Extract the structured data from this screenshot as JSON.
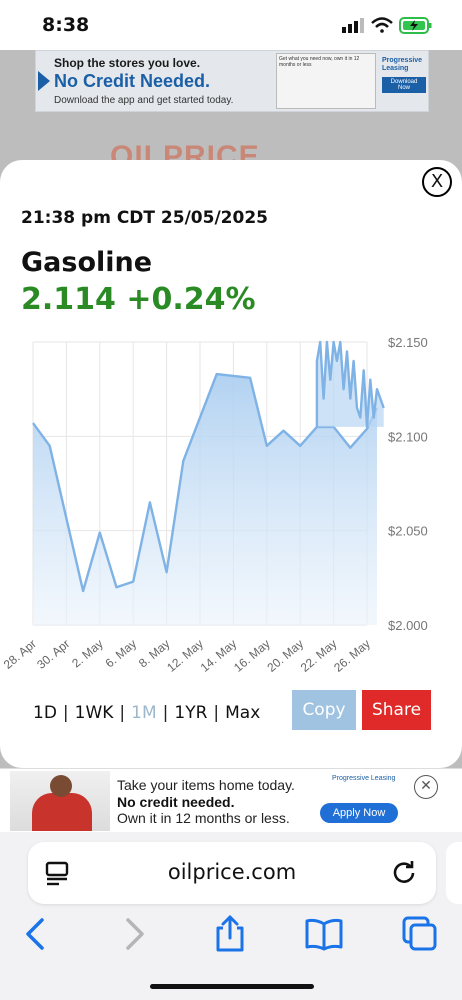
{
  "status_bar": {
    "time": "8:38"
  },
  "ad_top": {
    "line1": "Shop the stores you love.",
    "line2": "No Credit Needed.",
    "line3": "Download the app and get started today.",
    "phone_text": "Get what you need now, own it in 12 months or less",
    "brand": "Progressive Leasing",
    "brand_button": "Download Now"
  },
  "background_logo": "OILPRICE",
  "modal": {
    "timestamp": "21:38 pm CDT 25/05/2025",
    "commodity": "Gasoline",
    "price": "2.114 +0.24%",
    "range": {
      "d1": "1D",
      "wk1": "1WK",
      "m1": "1M",
      "yr1": "1YR",
      "max": "Max",
      "separator": "|"
    },
    "copy_label": "Copy",
    "share_label": "Share",
    "close_label": "X"
  },
  "chart_data": {
    "type": "area",
    "x_ticks": [
      "28. Apr",
      "30. Apr",
      "2. May",
      "6. May",
      "8. May",
      "12. May",
      "14. May",
      "16. May",
      "20. May",
      "22. May",
      "26. May"
    ],
    "y_ticks": [
      "$2.000",
      "$2.050",
      "$2.100",
      "$2.150"
    ],
    "ylim": [
      2.0,
      2.15
    ],
    "series": [
      {
        "points": [
          [
            0,
            2.107
          ],
          [
            0.5,
            2.095
          ],
          [
            1.5,
            2.018
          ],
          [
            2,
            2.049
          ],
          [
            2.5,
            2.02
          ],
          [
            3,
            2.023
          ],
          [
            3.5,
            2.065
          ],
          [
            4,
            2.028
          ],
          [
            4.5,
            2.087
          ],
          [
            5.5,
            2.133
          ],
          [
            6.5,
            2.131
          ],
          [
            7,
            2.095
          ],
          [
            7.5,
            2.103
          ],
          [
            8,
            2.095
          ],
          [
            8.5,
            2.105
          ],
          [
            9,
            2.105
          ],
          [
            9.5,
            2.094
          ],
          [
            10,
            2.104
          ],
          [
            10.3,
            2.115
          ]
        ]
      },
      {
        "points": [
          [
            8.5,
            2.105
          ],
          [
            8.5,
            2.14
          ],
          [
            8.6,
            2.15
          ],
          [
            8.7,
            2.12
          ],
          [
            8.8,
            2.15
          ],
          [
            8.9,
            2.13
          ],
          [
            9.0,
            2.15
          ],
          [
            9.1,
            2.14
          ],
          [
            9.2,
            2.15
          ],
          [
            9.3,
            2.125
          ],
          [
            9.4,
            2.145
          ],
          [
            9.5,
            2.12
          ],
          [
            9.6,
            2.14
          ],
          [
            9.7,
            2.115
          ],
          [
            9.8,
            2.11
          ],
          [
            9.9,
            2.135
          ],
          [
            10.0,
            2.105
          ],
          [
            10.1,
            2.13
          ],
          [
            10.2,
            2.11
          ],
          [
            10.3,
            2.125
          ],
          [
            10.4,
            2.12
          ],
          [
            10.5,
            2.115
          ]
        ]
      }
    ],
    "grid": true,
    "line_color": "#7fb2e5"
  },
  "ad_bottom": {
    "line1": "Take your items home today.",
    "line2": "No credit needed.",
    "line3": "Own it in 12 months or less.",
    "brand": "Progressive Leasing",
    "apply_label": "Apply Now"
  },
  "browser": {
    "url": "oilprice.com"
  }
}
